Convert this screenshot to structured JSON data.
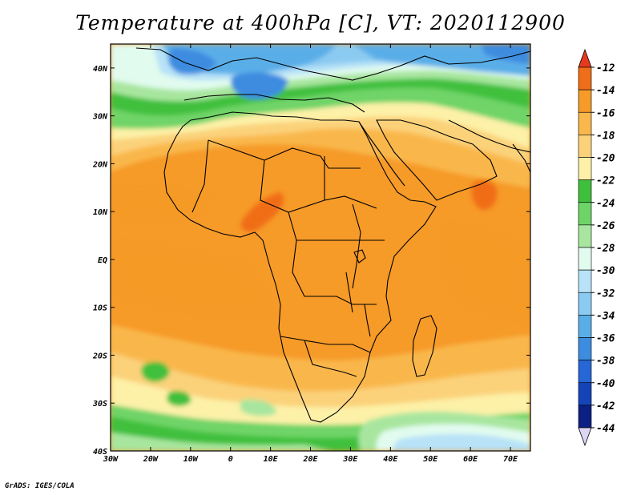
{
  "title": "Temperature at 400hPa [C], VT: 2020112900",
  "credit": "GrADS: IGES/COLA",
  "map": {
    "variable": "Temperature",
    "level": "400hPa",
    "units": "C",
    "valid_time": "2020112900",
    "lon_range": [
      -30,
      75
    ],
    "lat_range": [
      -40,
      45
    ],
    "lon_ticks": [
      {
        "value": -30,
        "label": "30W"
      },
      {
        "value": -20,
        "label": "20W"
      },
      {
        "value": -10,
        "label": "10W"
      },
      {
        "value": 0,
        "label": "0"
      },
      {
        "value": 10,
        "label": "10E"
      },
      {
        "value": 20,
        "label": "20E"
      },
      {
        "value": 30,
        "label": "30E"
      },
      {
        "value": 40,
        "label": "40E"
      },
      {
        "value": 50,
        "label": "50E"
      },
      {
        "value": 60,
        "label": "60E"
      },
      {
        "value": 70,
        "label": "70E"
      }
    ],
    "lat_ticks": [
      {
        "value": 40,
        "label": "40N"
      },
      {
        "value": 30,
        "label": "30N"
      },
      {
        "value": 20,
        "label": "20N"
      },
      {
        "value": 10,
        "label": "10N"
      },
      {
        "value": 0,
        "label": "EQ"
      },
      {
        "value": -10,
        "label": "10S"
      },
      {
        "value": -20,
        "label": "20S"
      },
      {
        "value": -30,
        "label": "30S"
      },
      {
        "value": -40,
        "label": "40S"
      }
    ]
  },
  "colorbar": {
    "levels": [
      "-12",
      "-14",
      "-16",
      "-18",
      "-20",
      "-22",
      "-24",
      "-26",
      "-28",
      "-30",
      "-32",
      "-34",
      "-36",
      "-38",
      "-40",
      "-42",
      "-44"
    ],
    "colors": [
      "#e8391f",
      "#f06d19",
      "#f69a28",
      "#f9b74c",
      "#fbd27a",
      "#fdf1a7",
      "#3fc03d",
      "#6fd467",
      "#a8e69f",
      "#e1fbef",
      "#b7e2f7",
      "#8ccbf1",
      "#5aaee8",
      "#3d8ce0",
      "#2666d6",
      "#1544b8",
      "#0c1f82",
      "#dcd6f4"
    ]
  }
}
